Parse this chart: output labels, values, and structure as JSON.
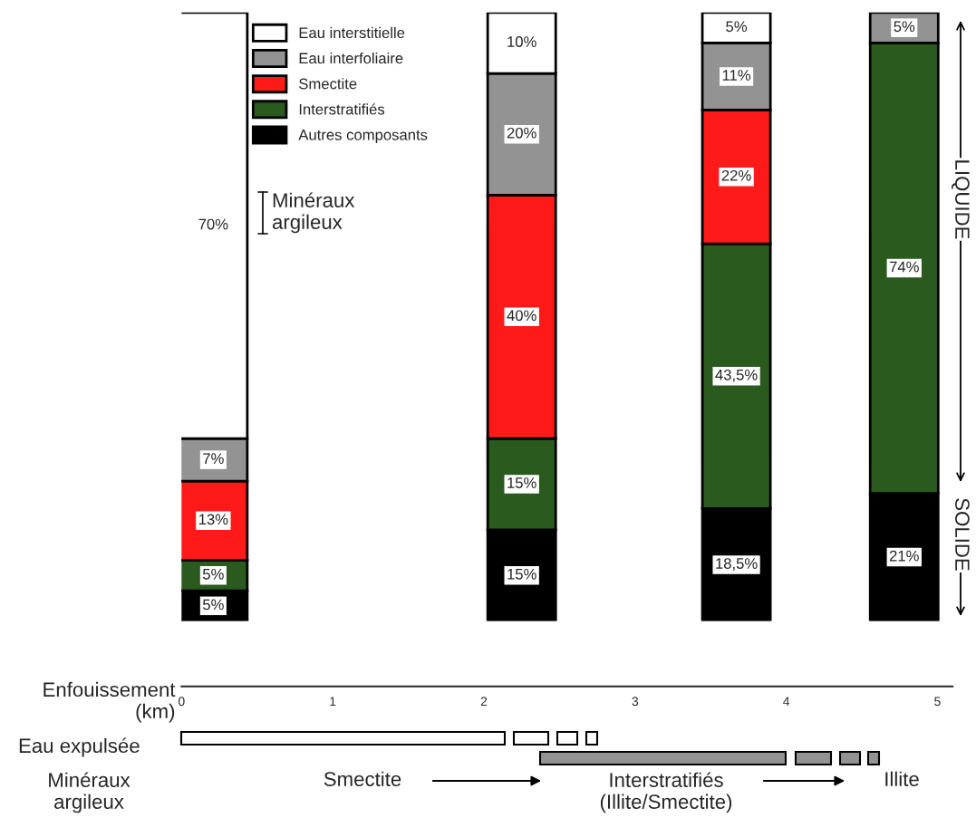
{
  "chart_data": {
    "type": "bar",
    "stacked": true,
    "x": [
      0.21,
      2.25,
      3.67,
      4.78
    ],
    "xlim": [
      0,
      5.1
    ],
    "xticks": [
      0,
      1,
      2,
      3,
      4,
      5
    ],
    "xlabel": "Enfouissement\n(km)",
    "series": [
      {
        "name": "Autres composants",
        "color": "#000000",
        "values": [
          5,
          15,
          18.5,
          21
        ],
        "value_labels": [
          "5%",
          "15%",
          "18,5%",
          "21%"
        ]
      },
      {
        "name": "Interstratifiés",
        "color": "#2a5a1e",
        "values": [
          5,
          15,
          43.5,
          74
        ],
        "value_labels": [
          "5%",
          "15%",
          "43,5%",
          "74%"
        ]
      },
      {
        "name": "Smectite",
        "color": "#ff1a1a",
        "values": [
          13,
          40,
          22,
          null
        ],
        "value_labels": [
          "13%",
          "40%",
          "22%",
          null
        ]
      },
      {
        "name": "Eau interfoliaire",
        "color": "#939393",
        "values": [
          7,
          20,
          11,
          5
        ],
        "value_labels": [
          "7%",
          "20%",
          "11%",
          "5%"
        ]
      },
      {
        "name": "Eau interstitielle",
        "color": "#ffffff",
        "values": [
          70,
          10,
          5,
          null
        ],
        "value_labels": [
          "70%",
          "10%",
          "5%",
          null
        ]
      }
    ],
    "legend": "top left",
    "annotations": [
      "Minéraux\nargileux",
      "LIQUIDE",
      "SOLIDE",
      "Eau expulsée",
      "Minéraux\nargileux",
      "Smectite",
      "Interstratifiés\n(Illite/Smectite)",
      "Illite"
    ]
  }
}
